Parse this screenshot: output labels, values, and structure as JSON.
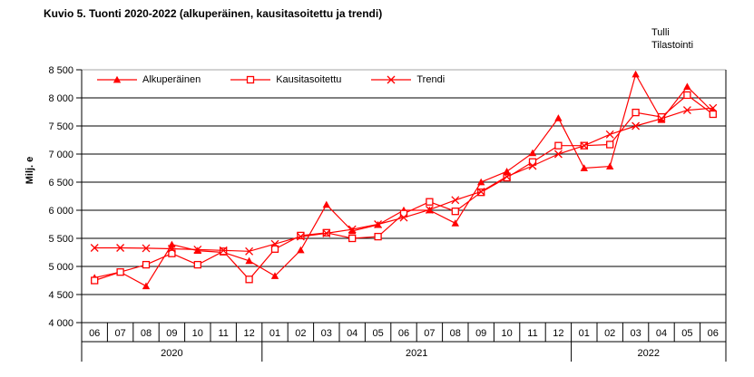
{
  "title": "Kuvio 5. Tuonti 2020-2022 (alkuperäinen, kausitasoitettu ja trendi)",
  "watermark": {
    "line1": "Tulli",
    "line2": "Tilastointi"
  },
  "y_axis_label": "Milj. e",
  "colors": {
    "series": "#ff0000",
    "grid": "#000000",
    "top_border": "#a6a6a6",
    "text": "#000000",
    "background": "#ffffff"
  },
  "chart_data": {
    "type": "line",
    "title": "Kuvio 5. Tuonti 2020-2022 (alkuperäinen, kausitasoitettu ja trendi)",
    "ylabel": "Milj. e",
    "ylim": [
      4000,
      8500
    ],
    "ytick_step": 500,
    "ytick_labels": [
      "4 000",
      "4 500",
      "5 000",
      "5 500",
      "6 000",
      "6 500",
      "7 000",
      "7 500",
      "8 000",
      "8 500"
    ],
    "grid": true,
    "legend_position": "top-inside",
    "x_categories": [
      "06",
      "07",
      "08",
      "09",
      "10",
      "11",
      "12",
      "01",
      "02",
      "03",
      "04",
      "05",
      "06",
      "07",
      "08",
      "09",
      "10",
      "11",
      "12",
      "01",
      "02",
      "03",
      "04",
      "05",
      "06"
    ],
    "year_groups": [
      {
        "label": "2020",
        "count": 7
      },
      {
        "label": "2021",
        "count": 12
      },
      {
        "label": "2022",
        "count": 6
      }
    ],
    "series": [
      {
        "name": "Alkuperäinen",
        "marker": "triangle",
        "values": [
          4800,
          4900,
          4650,
          5390,
          5280,
          5250,
          5100,
          4830,
          5290,
          6100,
          5630,
          5740,
          6000,
          6000,
          5770,
          6500,
          6690,
          7020,
          7640,
          6750,
          6780,
          8420,
          7610,
          8200,
          7750
        ]
      },
      {
        "name": "Kausitasoitettu",
        "marker": "square",
        "values": [
          4750,
          4900,
          5030,
          5230,
          5030,
          5270,
          4770,
          5310,
          5550,
          5600,
          5500,
          5530,
          5940,
          6150,
          5980,
          6320,
          6580,
          6860,
          7150,
          7150,
          7170,
          7740,
          7660,
          8050,
          7710
        ]
      },
      {
        "name": "Trendi",
        "marker": "x",
        "values": [
          5330,
          5330,
          5325,
          5315,
          5300,
          5285,
          5270,
          5400,
          5530,
          5590,
          5660,
          5750,
          5870,
          6010,
          6180,
          6330,
          6600,
          6790,
          7000,
          7150,
          7350,
          7500,
          7630,
          7780,
          7820
        ]
      }
    ]
  }
}
